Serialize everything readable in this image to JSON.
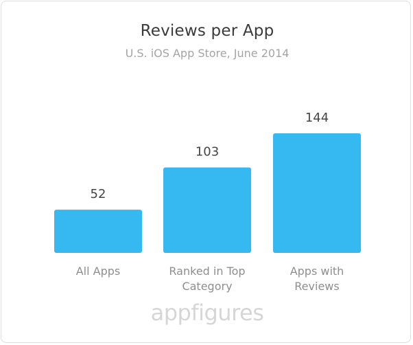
{
  "header": {
    "title": "Reviews per App",
    "subtitle": "U.S. iOS App Store, June 2014"
  },
  "brand": {
    "part1": "app",
    "part2": "figures"
  },
  "colors": {
    "bar": "#36b8f0",
    "value_text": "#444444",
    "category_text": "#8e8e8e",
    "brand_text": "#d6d6d6"
  },
  "chart_data": {
    "type": "bar",
    "title": "Reviews per App",
    "subtitle": "U.S. iOS App Store, June 2014",
    "categories": [
      [
        "All Apps"
      ],
      [
        "Ranked in Top",
        "Category"
      ],
      [
        "Apps with",
        "Reviews"
      ]
    ],
    "values": [
      52,
      103,
      144
    ],
    "value_labels": [
      "52",
      "103",
      "144"
    ],
    "xlabel": "",
    "ylabel": "",
    "grid": false,
    "legend": false
  }
}
